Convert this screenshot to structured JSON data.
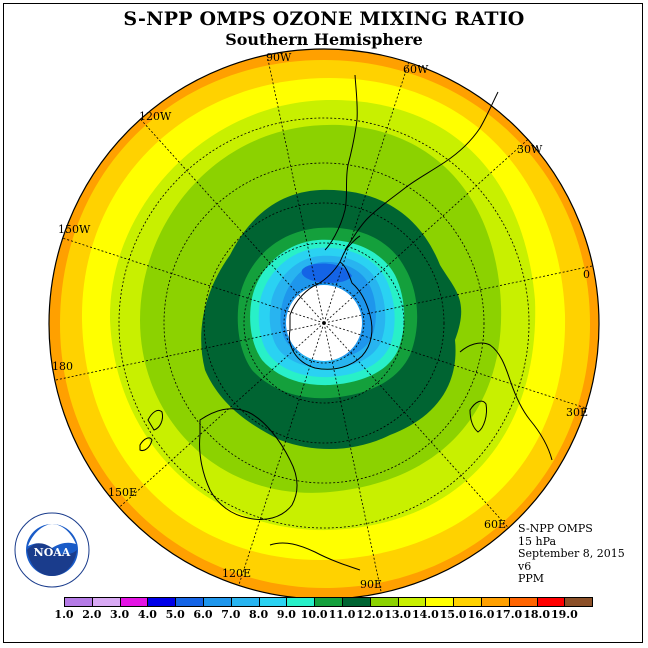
{
  "title": "S-NPP OMPS OZONE MIXING RATIO",
  "subtitle": "Southern Hemisphere",
  "info": {
    "line1": "S-NPP OMPS",
    "line2": "15 hPa",
    "line3": "September 8, 2015",
    "line4": "v6",
    "line5": "PPM"
  },
  "logo_text": "NOAA",
  "logo_ring_text": "NATIONAL OCEANIC AND ATMOSPHERIC ADMINISTRATION · U.S. DEPARTMENT OF COMMERCE",
  "longitude_labels": [
    {
      "label": "90W"
    },
    {
      "label": "60W"
    },
    {
      "label": "30W"
    },
    {
      "label": "0"
    },
    {
      "label": "30E"
    },
    {
      "label": "60E"
    },
    {
      "label": "90E"
    },
    {
      "label": "120E"
    },
    {
      "label": "150E"
    },
    {
      "label": "180"
    },
    {
      "label": "150W"
    },
    {
      "label": "120W"
    }
  ],
  "colorbar": {
    "labels": [
      "1.0",
      "2.0",
      "3.0",
      "4.0",
      "5.0",
      "6.0",
      "7.0",
      "8.0",
      "9.0",
      "10.0",
      "11.0",
      "12.0",
      "13.0",
      "14.0",
      "15.0",
      "16.0",
      "17.0",
      "18.0",
      "19.0"
    ],
    "colors": [
      "#b57be6",
      "#d8a9f3",
      "#e414e4",
      "#0000e8",
      "#1464e6",
      "#1e96ec",
      "#28b4f0",
      "#2ad2f2",
      "#28f0c8",
      "#14a03c",
      "#006432",
      "#8cd200",
      "#c8f000",
      "#ffff00",
      "#ffd200",
      "#ffa000",
      "#ff6400",
      "#ff0000",
      "#8c5028"
    ]
  },
  "map_data": {
    "projection": "south polar stereographic",
    "parameter": "ozone mixing ratio",
    "units": "PPM",
    "pressure_level": "15 hPa",
    "date": "September 8, 2015",
    "rings_outer_to_inner": [
      {
        "value_range": "15.0-16.0",
        "color": "#ffa000"
      },
      {
        "value_range": "14.0-15.0",
        "color": "#ffd200"
      },
      {
        "value_range": "13.0-14.0",
        "color": "#ffff00"
      },
      {
        "value_range": "12.0-13.0",
        "color": "#c8f000"
      },
      {
        "value_range": "11.0-12.0",
        "color": "#8cd200"
      },
      {
        "value_range": "10.0-11.0",
        "color": "#006432"
      },
      {
        "value_range": "9.0-10.0",
        "color": "#14a03c"
      },
      {
        "value_range": "8.0-9.0",
        "color": "#28f0c8"
      },
      {
        "value_range": "7.0-8.0",
        "color": "#2ad2f2"
      },
      {
        "value_range": "6.0-7.0",
        "color": "#28b4f0"
      },
      {
        "value_range": "5.0-6.0",
        "color": "#1e96ec"
      },
      {
        "value_range": "4.0-5.0",
        "color": "#1464e6"
      },
      {
        "value_range": "no data",
        "color": "#ffffff"
      }
    ]
  }
}
